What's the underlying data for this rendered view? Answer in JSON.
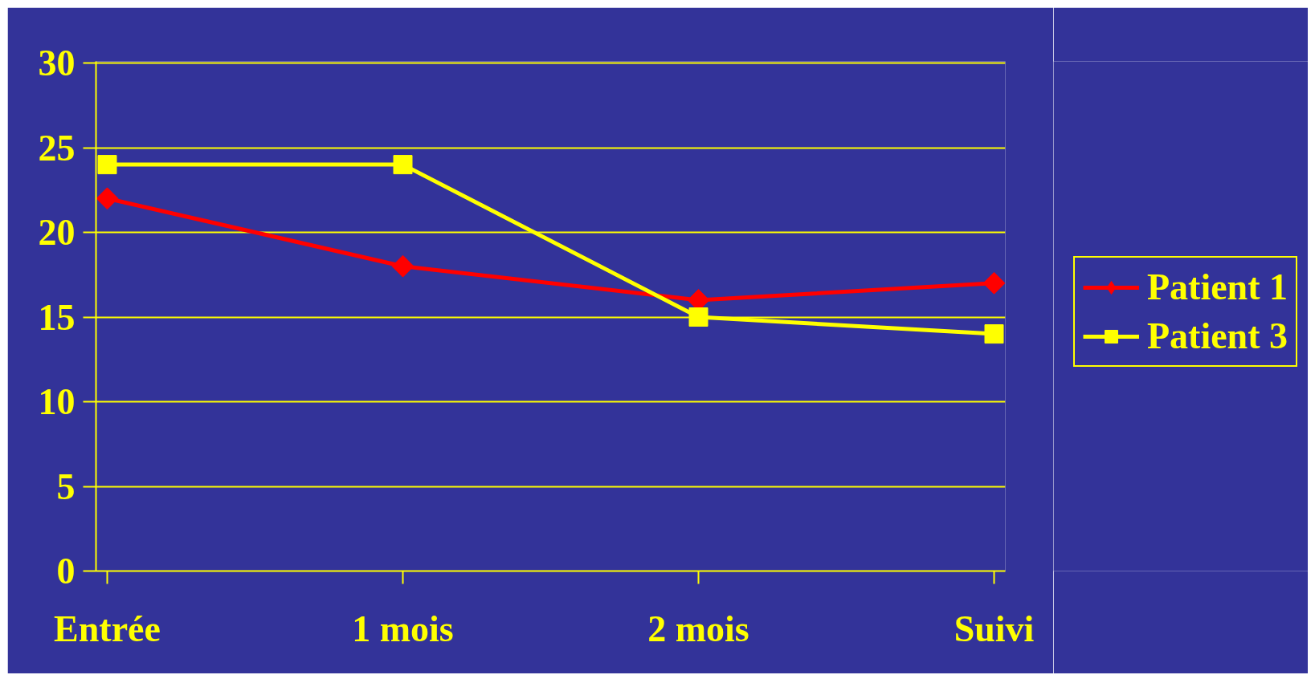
{
  "chart_data": {
    "type": "line",
    "categories": [
      "Entrée",
      "1 mois",
      "2 mois",
      "Suivi"
    ],
    "series": [
      {
        "name": "Patient 1",
        "color": "#ff0000",
        "values": [
          22,
          18,
          16,
          17
        ],
        "marker": "diamond"
      },
      {
        "name": "Patient 3",
        "color": "#ffff00",
        "values": [
          24,
          24,
          15,
          14
        ],
        "marker": "square"
      }
    ],
    "ylim": [
      0,
      30
    ],
    "yticks": [
      0,
      5,
      10,
      15,
      20,
      25,
      30
    ],
    "grid": "y",
    "legend": "right",
    "line_style": "solid"
  }
}
